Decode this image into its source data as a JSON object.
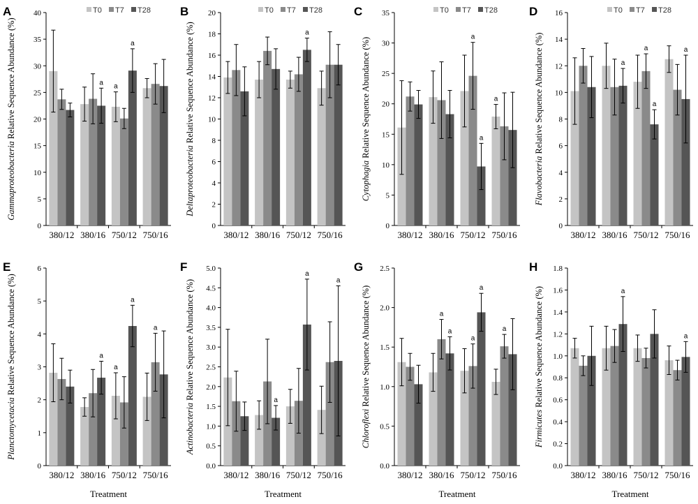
{
  "figure": {
    "xlabel": "Treatment"
  },
  "colors": {
    "T0": "#c4c4c4",
    "T7": "#8a8a8a",
    "T28": "#555555",
    "axis": "#000000",
    "error": "#000000"
  },
  "chart_data": [
    {
      "label": "A",
      "type": "bar",
      "taxon": "Gammaproteobacteria",
      "ylabel_suffix": " Relative Sequence Abundance (%)",
      "ylim": [
        0,
        40
      ],
      "ystep": 5,
      "decimals": 0,
      "categories": [
        "380/12",
        "380/16",
        "750/12",
        "750/16"
      ],
      "legend": [
        "T0",
        "T7",
        "T28"
      ],
      "series": [
        {
          "name": "T0",
          "values": [
            29.0,
            22.8,
            22.3,
            25.8
          ],
          "errors": [
            7.7,
            3.2,
            2.8,
            1.8
          ]
        },
        {
          "name": "T7",
          "values": [
            23.7,
            23.8,
            20.1,
            26.6
          ],
          "errors": [
            1.9,
            4.7,
            1.9,
            3.8
          ]
        },
        {
          "name": "T28",
          "values": [
            21.7,
            22.5,
            29.1,
            26.2
          ],
          "errors": [
            1.3,
            3.3,
            4.1,
            5.0
          ]
        }
      ],
      "annotations": [
        {
          "category": 1,
          "series": 2,
          "text": "a"
        },
        {
          "category": 2,
          "series": 0,
          "text": "a"
        },
        {
          "category": 2,
          "series": 2,
          "text": "a"
        }
      ],
      "xlabel": ""
    },
    {
      "label": "B",
      "type": "bar",
      "taxon": "Deltaproteobacteria",
      "ylabel_suffix": " Relative Sequence Abundance (%)",
      "ylim": [
        0,
        20
      ],
      "ystep": 2,
      "decimals": 0,
      "categories": [
        "380/12",
        "380/16",
        "750/12",
        "750/16"
      ],
      "legend": [
        "T0",
        "T7",
        "T28"
      ],
      "series": [
        {
          "name": "T0",
          "values": [
            13.9,
            13.7,
            13.7,
            12.9
          ],
          "errors": [
            1.5,
            1.7,
            0.8,
            1.6
          ]
        },
        {
          "name": "T7",
          "values": [
            14.6,
            16.4,
            14.2,
            15.1
          ],
          "errors": [
            2.4,
            1.3,
            1.6,
            3.1
          ]
        },
        {
          "name": "T28",
          "values": [
            12.6,
            14.7,
            16.5,
            15.1
          ],
          "errors": [
            2.3,
            1.9,
            1.1,
            1.9
          ]
        }
      ],
      "annotations": [
        {
          "category": 2,
          "series": 2,
          "text": "a"
        }
      ],
      "xlabel": ""
    },
    {
      "label": "C",
      "type": "bar",
      "taxon": "Cytophagia",
      "ylabel_suffix": " Relative Sequence Abundance (%)",
      "ylim": [
        0,
        35
      ],
      "ystep": 5,
      "decimals": 0,
      "categories": [
        "380/12",
        "380/16",
        "750/12",
        "750/16"
      ],
      "legend": [
        "T0",
        "T7",
        "T28"
      ],
      "series": [
        {
          "name": "T0",
          "values": [
            16.1,
            21.1,
            22.1,
            17.9
          ],
          "errors": [
            7.7,
            4.3,
            5.9,
            2.0
          ]
        },
        {
          "name": "T7",
          "values": [
            21.2,
            20.6,
            24.6,
            16.3
          ],
          "errors": [
            2.4,
            6.3,
            5.5,
            5.5
          ]
        },
        {
          "name": "T28",
          "values": [
            19.9,
            18.3,
            9.7,
            15.7
          ],
          "errors": [
            2.3,
            3.9,
            3.8,
            6.2
          ]
        }
      ],
      "annotations": [
        {
          "category": 2,
          "series": 1,
          "text": "a"
        },
        {
          "category": 2,
          "series": 2,
          "text": "a"
        },
        {
          "category": 3,
          "series": 0,
          "text": "a"
        }
      ],
      "xlabel": ""
    },
    {
      "label": "D",
      "type": "bar",
      "taxon": "Flavobacteria",
      "ylabel_suffix": " Relative Sequence Abundance (%)",
      "ylim": [
        0,
        16
      ],
      "ystep": 2,
      "decimals": 0,
      "categories": [
        "380/12",
        "380/16",
        "750/12",
        "750/16"
      ],
      "legend": [
        "T0",
        "T7",
        "T28"
      ],
      "series": [
        {
          "name": "T0",
          "values": [
            10.1,
            12.0,
            10.8,
            12.5
          ],
          "errors": [
            2.5,
            1.7,
            2.0,
            1.0
          ]
        },
        {
          "name": "T7",
          "values": [
            12.0,
            10.4,
            11.6,
            10.2
          ],
          "errors": [
            1.3,
            2.1,
            1.3,
            1.9
          ]
        },
        {
          "name": "T28",
          "values": [
            10.4,
            10.5,
            7.6,
            9.5
          ],
          "errors": [
            2.3,
            1.3,
            1.1,
            3.3
          ]
        }
      ],
      "annotations": [
        {
          "category": 1,
          "series": 2,
          "text": "a"
        },
        {
          "category": 2,
          "series": 1,
          "text": "a"
        },
        {
          "category": 2,
          "series": 2,
          "text": "a"
        },
        {
          "category": 3,
          "series": 2,
          "text": "a"
        }
      ],
      "xlabel": ""
    },
    {
      "label": "E",
      "type": "bar",
      "taxon": "Planctomycetacia",
      "ylabel_suffix": " Relative Sequence Abundance (%)",
      "ylim": [
        0,
        6
      ],
      "ystep": 1,
      "decimals": 0,
      "categories": [
        "380/12",
        "380/16",
        "750/12",
        "750/16"
      ],
      "legend": [],
      "series": [
        {
          "name": "T0",
          "values": [
            2.82,
            1.78,
            2.12,
            2.09
          ],
          "errors": [
            0.88,
            0.28,
            0.7,
            0.72
          ]
        },
        {
          "name": "T7",
          "values": [
            2.63,
            2.2,
            1.92,
            3.14
          ],
          "errors": [
            0.63,
            0.72,
            0.78,
            0.88
          ]
        },
        {
          "name": "T28",
          "values": [
            2.4,
            2.67,
            4.24,
            2.77
          ],
          "errors": [
            0.5,
            0.5,
            0.63,
            1.32
          ]
        }
      ],
      "annotations": [
        {
          "category": 1,
          "series": 2,
          "text": "a"
        },
        {
          "category": 2,
          "series": 0,
          "text": "a"
        },
        {
          "category": 2,
          "series": 2,
          "text": "a"
        },
        {
          "category": 3,
          "series": 1,
          "text": "a"
        }
      ],
      "xlabel": "Treatment"
    },
    {
      "label": "F",
      "type": "bar",
      "taxon": "Actinobacteria",
      "ylabel_suffix": " Relative Sequence Abundance (%)",
      "ylim": [
        0,
        5
      ],
      "ystep": 0.5,
      "decimals": 1,
      "categories": [
        "380/12",
        "380/16",
        "750/12",
        "750/16"
      ],
      "legend": [],
      "series": [
        {
          "name": "T0",
          "values": [
            2.23,
            1.28,
            1.5,
            1.41
          ],
          "errors": [
            1.22,
            0.36,
            0.43,
            0.6
          ]
        },
        {
          "name": "T7",
          "values": [
            1.63,
            2.13,
            1.64,
            2.62
          ],
          "errors": [
            0.76,
            1.07,
            0.82,
            1.02
          ]
        },
        {
          "name": "T28",
          "values": [
            1.25,
            1.21,
            3.57,
            2.65
          ],
          "errors": [
            0.36,
            0.31,
            1.15,
            1.9
          ]
        }
      ],
      "annotations": [
        {
          "category": 1,
          "series": 2,
          "text": "a"
        },
        {
          "category": 2,
          "series": 2,
          "text": "a"
        },
        {
          "category": 3,
          "series": 2,
          "text": "a"
        }
      ],
      "xlabel": "Treatment"
    },
    {
      "label": "G",
      "type": "bar",
      "taxon": "Chloroflexi",
      "ylabel_suffix": " Relative Sequence Abundance (%)",
      "ylim": [
        0,
        2.5
      ],
      "ystep": 0.5,
      "decimals": 1,
      "categories": [
        "380/12",
        "380/16",
        "750/12",
        "750/16"
      ],
      "legend": [],
      "series": [
        {
          "name": "T0",
          "values": [
            1.31,
            1.18,
            1.2,
            1.06
          ],
          "errors": [
            0.3,
            0.24,
            0.28,
            0.16
          ]
        },
        {
          "name": "T7",
          "values": [
            1.25,
            1.6,
            1.26,
            1.51
          ],
          "errors": [
            0.17,
            0.25,
            0.28,
            0.15
          ]
        },
        {
          "name": "T28",
          "values": [
            1.03,
            1.42,
            1.94,
            1.41
          ],
          "errors": [
            0.24,
            0.21,
            0.24,
            0.45
          ]
        }
      ],
      "annotations": [
        {
          "category": 1,
          "series": 1,
          "text": "a"
        },
        {
          "category": 1,
          "series": 2,
          "text": "a"
        },
        {
          "category": 2,
          "series": 1,
          "text": "a"
        },
        {
          "category": 2,
          "series": 2,
          "text": "a"
        },
        {
          "category": 3,
          "series": 1,
          "text": "a"
        }
      ],
      "xlabel": "Treatment"
    },
    {
      "label": "H",
      "type": "bar",
      "taxon": "Firmicutes",
      "ylabel_suffix": " Relative Sequence Abundance (%)",
      "ylim": [
        0,
        1.8
      ],
      "ystep": 0.2,
      "decimals": 1,
      "categories": [
        "380/12",
        "380/16",
        "750/12",
        "750/16"
      ],
      "legend": [],
      "series": [
        {
          "name": "T0",
          "values": [
            1.07,
            1.07,
            1.07,
            0.96
          ],
          "errors": [
            0.09,
            0.2,
            0.12,
            0.13
          ]
        },
        {
          "name": "T7",
          "values": [
            0.91,
            1.09,
            0.98,
            0.87
          ],
          "errors": [
            0.09,
            0.15,
            0.09,
            0.09
          ]
        },
        {
          "name": "T28",
          "values": [
            1.0,
            1.29,
            1.2,
            0.99
          ],
          "errors": [
            0.27,
            0.25,
            0.22,
            0.14
          ]
        }
      ],
      "annotations": [
        {
          "category": 1,
          "series": 2,
          "text": "a"
        },
        {
          "category": 3,
          "series": 2,
          "text": "a"
        }
      ],
      "xlabel": "Treatment"
    }
  ]
}
